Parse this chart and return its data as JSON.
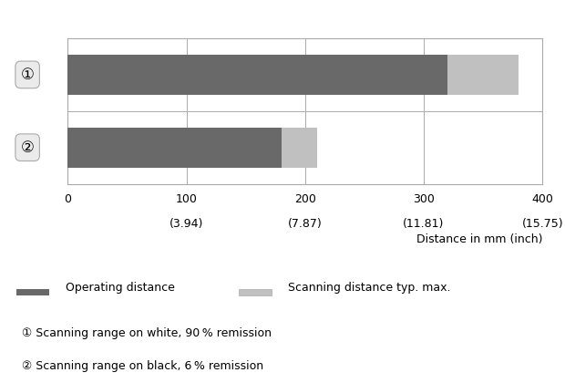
{
  "bar1_operating": 320,
  "bar1_scanning": 60,
  "bar2_operating": 180,
  "bar2_scanning": 30,
  "xmax": 400,
  "xticks": [
    0,
    100,
    200,
    300,
    400
  ],
  "xtick_labels_mm": [
    "0",
    "100",
    "200",
    "300",
    "400"
  ],
  "xtick_labels_inch": [
    "",
    "(3.94)",
    "(7.87)",
    "(11.81)",
    "(15.75)"
  ],
  "xlabel": "Distance in mm (inch)",
  "color_operating": "#696969",
  "color_scanning": "#c0c0c0",
  "color_row_bg": "#ebebeb",
  "color_border": "#aaaaaa",
  "legend_operating": "Operating distance",
  "legend_scanning": "Scanning distance typ. max.",
  "note1": "① Scanning range on white, 90 % remission",
  "note2": "② Scanning range on black, 6 % remission"
}
